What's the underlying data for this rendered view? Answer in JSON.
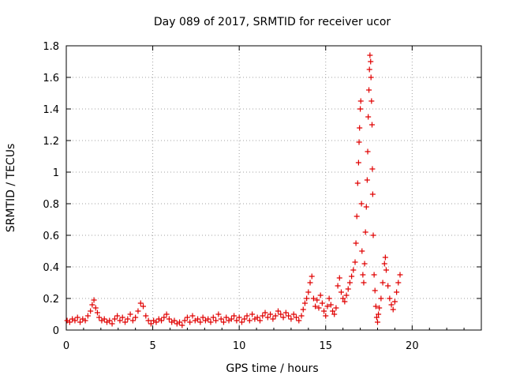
{
  "chart_data": {
    "type": "scatter",
    "title": "Day 089 of 2017, SRMTID for receiver ucor",
    "xlabel": "GPS time / hours",
    "ylabel": "SRMTID / TECUs",
    "xlim": [
      0,
      24
    ],
    "ylim": [
      0,
      1.8
    ],
    "xticks": [
      "0",
      "5",
      "10",
      "15",
      "20"
    ],
    "yticks": [
      "0",
      "0.2",
      "0.4",
      "0.6",
      "0.8",
      "1",
      "1.2",
      "1.4",
      "1.6",
      "1.8"
    ],
    "grid": true,
    "marker": "+",
    "color": "#e00000",
    "series": [
      {
        "name": "SRMTID",
        "points": [
          [
            0.05,
            0.06
          ],
          [
            0.2,
            0.05
          ],
          [
            0.35,
            0.07
          ],
          [
            0.5,
            0.06
          ],
          [
            0.65,
            0.08
          ],
          [
            0.8,
            0.05
          ],
          [
            0.95,
            0.07
          ],
          [
            1.1,
            0.06
          ],
          [
            1.25,
            0.09
          ],
          [
            1.4,
            0.12
          ],
          [
            1.5,
            0.16
          ],
          [
            1.6,
            0.19
          ],
          [
            1.7,
            0.14
          ],
          [
            1.8,
            0.11
          ],
          [
            1.9,
            0.08
          ],
          [
            2.05,
            0.06
          ],
          [
            2.2,
            0.07
          ],
          [
            2.35,
            0.05
          ],
          [
            2.5,
            0.06
          ],
          [
            2.65,
            0.04
          ],
          [
            2.8,
            0.07
          ],
          [
            2.95,
            0.09
          ],
          [
            3.1,
            0.06
          ],
          [
            3.25,
            0.08
          ],
          [
            3.4,
            0.05
          ],
          [
            3.55,
            0.07
          ],
          [
            3.7,
            0.1
          ],
          [
            3.85,
            0.06
          ],
          [
            4.0,
            0.08
          ],
          [
            4.15,
            0.12
          ],
          [
            4.3,
            0.17
          ],
          [
            4.45,
            0.15
          ],
          [
            4.6,
            0.09
          ],
          [
            4.75,
            0.06
          ],
          [
            4.9,
            0.04
          ],
          [
            5.05,
            0.06
          ],
          [
            5.2,
            0.05
          ],
          [
            5.35,
            0.07
          ],
          [
            5.5,
            0.06
          ],
          [
            5.65,
            0.08
          ],
          [
            5.8,
            0.1
          ],
          [
            5.95,
            0.07
          ],
          [
            6.1,
            0.05
          ],
          [
            6.25,
            0.06
          ],
          [
            6.4,
            0.04
          ],
          [
            6.55,
            0.05
          ],
          [
            6.7,
            0.03
          ],
          [
            6.85,
            0.06
          ],
          [
            7.0,
            0.08
          ],
          [
            7.15,
            0.05
          ],
          [
            7.3,
            0.09
          ],
          [
            7.45,
            0.06
          ],
          [
            7.6,
            0.07
          ],
          [
            7.75,
            0.05
          ],
          [
            7.9,
            0.08
          ],
          [
            8.05,
            0.06
          ],
          [
            8.2,
            0.07
          ],
          [
            8.35,
            0.05
          ],
          [
            8.5,
            0.08
          ],
          [
            8.65,
            0.06
          ],
          [
            8.8,
            0.1
          ],
          [
            8.95,
            0.07
          ],
          [
            9.1,
            0.05
          ],
          [
            9.25,
            0.08
          ],
          [
            9.4,
            0.06
          ],
          [
            9.55,
            0.07
          ],
          [
            9.7,
            0.09
          ],
          [
            9.85,
            0.06
          ],
          [
            10.0,
            0.08
          ],
          [
            10.15,
            0.05
          ],
          [
            10.3,
            0.07
          ],
          [
            10.45,
            0.09
          ],
          [
            10.6,
            0.06
          ],
          [
            10.75,
            0.1
          ],
          [
            10.9,
            0.07
          ],
          [
            11.05,
            0.08
          ],
          [
            11.2,
            0.06
          ],
          [
            11.35,
            0.09
          ],
          [
            11.5,
            0.11
          ],
          [
            11.65,
            0.08
          ],
          [
            11.8,
            0.1
          ],
          [
            11.95,
            0.07
          ],
          [
            12.1,
            0.09
          ],
          [
            12.25,
            0.12
          ],
          [
            12.4,
            0.1
          ],
          [
            12.55,
            0.08
          ],
          [
            12.7,
            0.11
          ],
          [
            12.85,
            0.09
          ],
          [
            13.0,
            0.07
          ],
          [
            13.15,
            0.1
          ],
          [
            13.3,
            0.08
          ],
          [
            13.45,
            0.06
          ],
          [
            13.6,
            0.09
          ],
          [
            13.7,
            0.13
          ],
          [
            13.8,
            0.17
          ],
          [
            13.9,
            0.2
          ],
          [
            14.0,
            0.24
          ],
          [
            14.1,
            0.3
          ],
          [
            14.2,
            0.34
          ],
          [
            14.3,
            0.2
          ],
          [
            14.4,
            0.15
          ],
          [
            14.5,
            0.19
          ],
          [
            14.6,
            0.14
          ],
          [
            14.7,
            0.22
          ],
          [
            14.8,
            0.17
          ],
          [
            14.9,
            0.12
          ],
          [
            15.0,
            0.09
          ],
          [
            15.1,
            0.15
          ],
          [
            15.2,
            0.2
          ],
          [
            15.3,
            0.16
          ],
          [
            15.4,
            0.12
          ],
          [
            15.5,
            0.1
          ],
          [
            15.6,
            0.14
          ],
          [
            15.7,
            0.28
          ],
          [
            15.8,
            0.33
          ],
          [
            15.9,
            0.24
          ],
          [
            16.0,
            0.2
          ],
          [
            16.1,
            0.18
          ],
          [
            16.2,
            0.22
          ],
          [
            16.3,
            0.26
          ],
          [
            16.4,
            0.3
          ],
          [
            16.5,
            0.34
          ],
          [
            16.6,
            0.38
          ],
          [
            16.7,
            0.43
          ],
          [
            16.75,
            0.55
          ],
          [
            16.8,
            0.72
          ],
          [
            16.85,
            0.93
          ],
          [
            16.9,
            1.06
          ],
          [
            16.93,
            1.19
          ],
          [
            16.96,
            1.28
          ],
          [
            17.0,
            1.4
          ],
          [
            17.03,
            1.45
          ],
          [
            17.07,
            0.8
          ],
          [
            17.1,
            0.5
          ],
          [
            17.15,
            0.35
          ],
          [
            17.2,
            0.3
          ],
          [
            17.25,
            0.42
          ],
          [
            17.3,
            0.62
          ],
          [
            17.35,
            0.78
          ],
          [
            17.4,
            0.95
          ],
          [
            17.43,
            1.13
          ],
          [
            17.46,
            1.35
          ],
          [
            17.5,
            1.52
          ],
          [
            17.53,
            1.65
          ],
          [
            17.56,
            1.74
          ],
          [
            17.6,
            1.7
          ],
          [
            17.62,
            1.6
          ],
          [
            17.65,
            1.45
          ],
          [
            17.68,
            1.3
          ],
          [
            17.7,
            1.02
          ],
          [
            17.72,
            0.86
          ],
          [
            17.75,
            0.6
          ],
          [
            17.8,
            0.35
          ],
          [
            17.85,
            0.25
          ],
          [
            17.9,
            0.15
          ],
          [
            17.95,
            0.08
          ],
          [
            18.0,
            0.05
          ],
          [
            18.05,
            0.1
          ],
          [
            18.1,
            0.14
          ],
          [
            18.2,
            0.2
          ],
          [
            18.3,
            0.3
          ],
          [
            18.4,
            0.42
          ],
          [
            18.45,
            0.46
          ],
          [
            18.5,
            0.38
          ],
          [
            18.6,
            0.28
          ],
          [
            18.7,
            0.2
          ],
          [
            18.8,
            0.16
          ],
          [
            18.9,
            0.13
          ],
          [
            19.0,
            0.18
          ],
          [
            19.1,
            0.24
          ],
          [
            19.2,
            0.3
          ],
          [
            19.3,
            0.35
          ]
        ]
      }
    ]
  }
}
